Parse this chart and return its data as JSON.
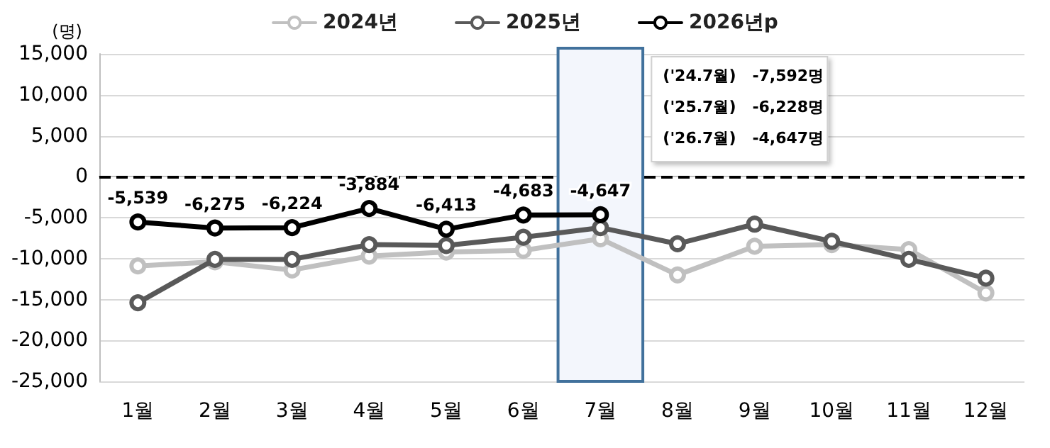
{
  "chart_data": {
    "type": "line",
    "ylabel": "(명)",
    "categories": [
      "1월",
      "2월",
      "3월",
      "4월",
      "5월",
      "6월",
      "7월",
      "8월",
      "9월",
      "10월",
      "11월",
      "12월"
    ],
    "series": [
      {
        "name": "2024년",
        "color": "#c0c0c0",
        "values": [
          -10900,
          -10400,
          -11400,
          -9700,
          -9200,
          -9000,
          -7592,
          -12000,
          -8500,
          -8300,
          -8900,
          -14200
        ]
      },
      {
        "name": "2025년",
        "color": "#595959",
        "values": [
          -15400,
          -10100,
          -10100,
          -8300,
          -8400,
          -7400,
          -6228,
          -8200,
          -5800,
          -7900,
          -10100,
          -12400
        ]
      },
      {
        "name": "2026년p",
        "color": "#000000",
        "values": [
          -5539,
          -6275,
          -6224,
          -3884,
          -6413,
          -4683,
          -4647,
          null,
          null,
          null,
          null,
          null
        ],
        "value_labels": [
          "-5,539",
          "-6,275",
          "-6,224",
          "-3,884",
          "-6,413",
          "-4,683",
          "-4,647",
          null,
          null,
          null,
          null,
          null
        ]
      }
    ],
    "ylim": [
      -25000,
      15000
    ],
    "yticks": [
      {
        "value": -25000,
        "label": "-25,000"
      },
      {
        "value": -20000,
        "label": "-20,000"
      },
      {
        "value": -15000,
        "label": "-15,000"
      },
      {
        "value": -10000,
        "label": "-10,000"
      },
      {
        "value": -5000,
        "label": "-5,000"
      },
      0,
      {
        "value": 5000,
        "label": "5,000"
      },
      {
        "value": 10000,
        "label": "10,000"
      },
      {
        "value": 15000,
        "label": "15,000"
      }
    ],
    "grid": "y",
    "legend": "top",
    "marker": "circle",
    "line_style": "solid",
    "ref_lines": [
      {
        "axis": "y",
        "value": 0,
        "line_style": "dashed",
        "color": "#000000"
      }
    ],
    "bands": [
      {
        "axis": "x",
        "from": "7월",
        "to": "7월",
        "color": "#f3f6fc"
      }
    ],
    "annotations": [
      "('24.7월)   -7,592명",
      "('25.7월)   -6,228명",
      "('26.7월)   -4,647명"
    ]
  }
}
